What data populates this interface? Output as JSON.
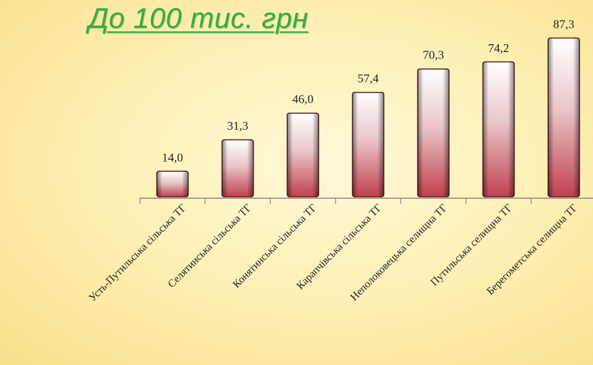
{
  "title": "До 100 тис. грн",
  "chart_data": {
    "type": "bar",
    "title": "До 100 тис. грн",
    "categories": [
      "Усть-Путильська сільська ТГ",
      "Селятинська сільська ТГ",
      "Конятинська сільська ТГ",
      "Карапчівська сільська ТГ",
      "Неполоковецька селищна ТГ",
      "Путильська селищна ТГ",
      "Берегометська селищна ТГ"
    ],
    "values": [
      14.0,
      31.3,
      46.0,
      57.4,
      70.3,
      74.2,
      87.3
    ],
    "value_labels": [
      "14,0",
      "31,3",
      "46,0",
      "57,4",
      "70,3",
      "74,2",
      "87,3"
    ],
    "ylim": [
      0,
      100
    ],
    "grid": false,
    "legend": "none",
    "colors": {
      "bar_top": "#ffffff",
      "bar_bottom": "#c0414e",
      "title": "#2fb13c",
      "axis": "#8a8a8a"
    }
  }
}
